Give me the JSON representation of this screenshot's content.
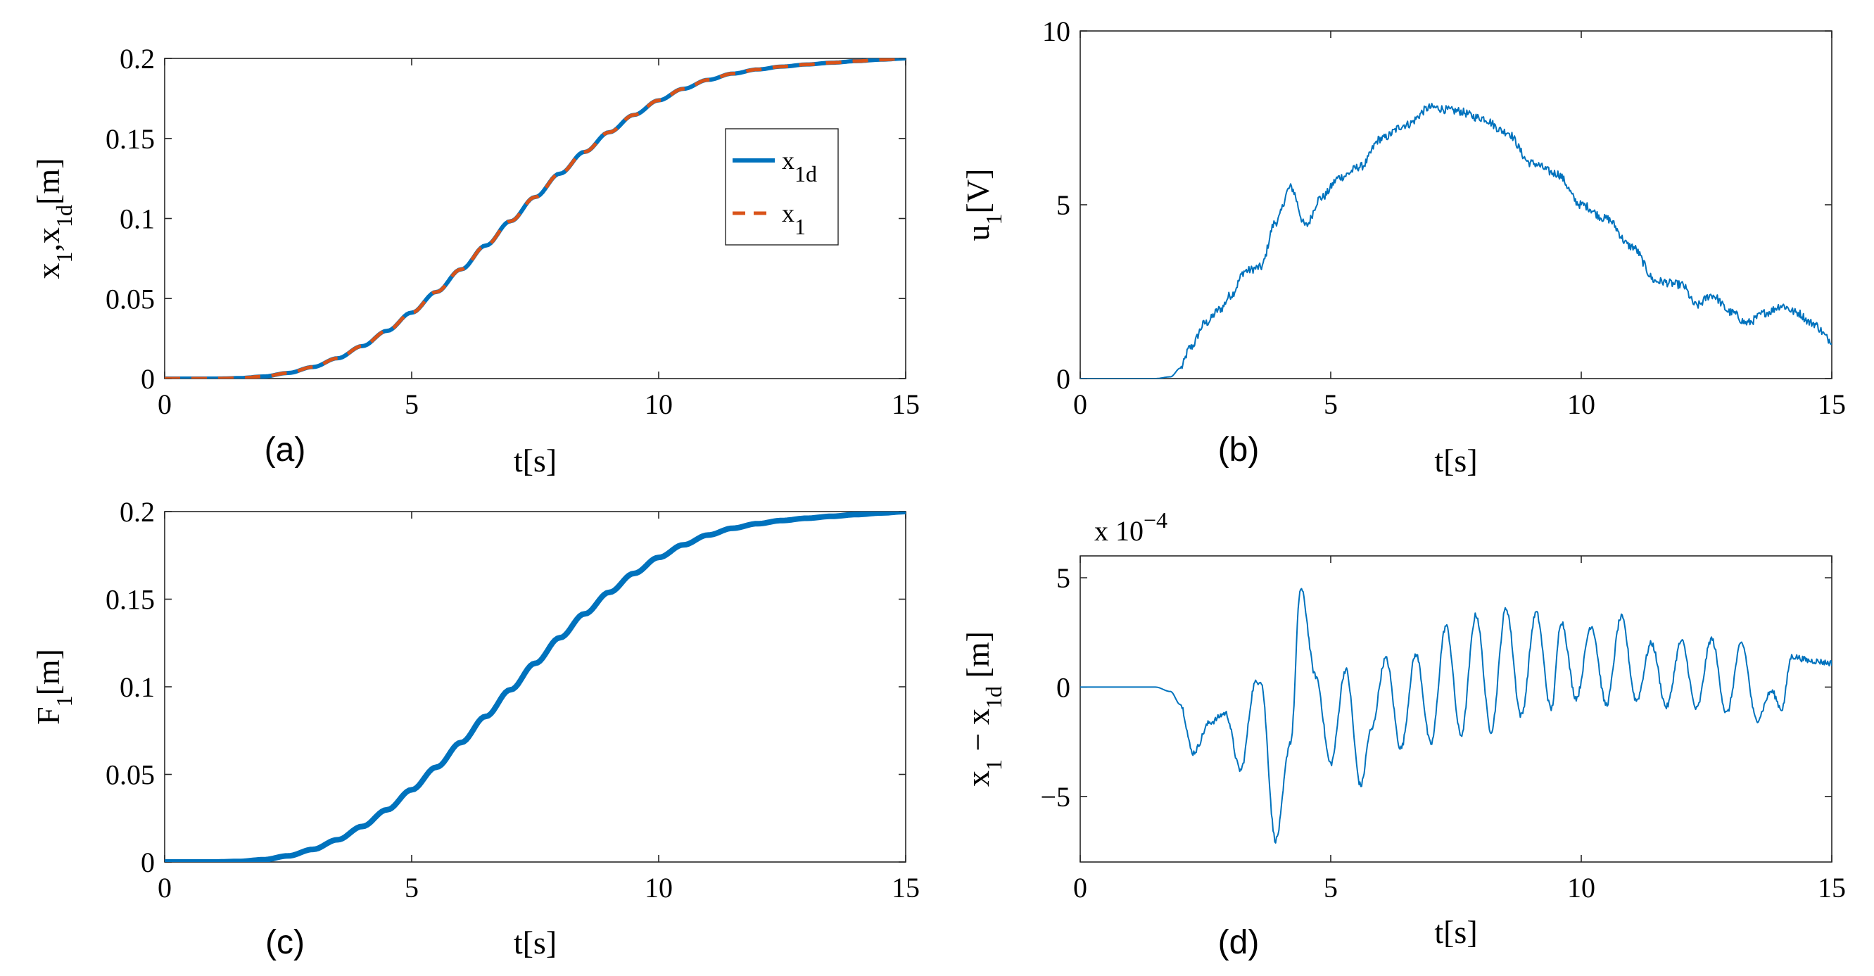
{
  "figure": {
    "panel_count": 4
  },
  "chart_data": [
    {
      "id": "a",
      "type": "line",
      "panel_label": "(a)",
      "xlabel": "t[s]",
      "ylabel": {
        "main": "x",
        "s1": "1",
        "mid": ",x",
        "s2": "1d",
        "tail": "[m]"
      },
      "xlim": [
        0,
        15
      ],
      "ylim": [
        0,
        0.2
      ],
      "xticks": [
        0,
        5,
        10,
        15
      ],
      "yticks": [
        0,
        0.05,
        0.1,
        0.15,
        0.2
      ],
      "ytick_labels": [
        "0",
        "0.05",
        "0.1",
        "0.15",
        "0.2"
      ],
      "legend": {
        "position": "right-middle",
        "entries": [
          {
            "main": "x",
            "sub": "1d",
            "series": "x1d"
          },
          {
            "main": "x",
            "sub": "1",
            "series": "x1"
          }
        ]
      },
      "series": [
        {
          "name": "x1d",
          "color": "#0072BD",
          "style": "solid",
          "x": [
            0,
            0.5,
            1,
            1.5,
            2,
            2.5,
            3,
            3.5,
            4,
            4.5,
            5,
            5.5,
            6,
            6.5,
            7,
            7.5,
            8,
            8.5,
            9,
            9.5,
            10,
            10.5,
            11,
            11.5,
            12,
            12.5,
            13,
            13.5,
            14,
            14.5,
            15
          ],
          "y": [
            0,
            0,
            0,
            0.0003,
            0.0013,
            0.0035,
            0.0072,
            0.0127,
            0.0203,
            0.0298,
            0.0412,
            0.0541,
            0.0682,
            0.0831,
            0.0983,
            0.1134,
            0.128,
            0.1416,
            0.1539,
            0.1647,
            0.1738,
            0.181,
            0.1866,
            0.1905,
            0.1931,
            0.1949,
            0.1962,
            0.1973,
            0.1983,
            0.1992,
            0.2
          ]
        },
        {
          "name": "x1",
          "color": "#D95319",
          "style": "dashed",
          "x": [
            0,
            0.5,
            1,
            1.5,
            2,
            2.5,
            3,
            3.5,
            4,
            4.5,
            5,
            5.5,
            6,
            6.5,
            7,
            7.5,
            8,
            8.5,
            9,
            9.5,
            10,
            10.5,
            11,
            11.5,
            12,
            12.5,
            13,
            13.5,
            14,
            14.5,
            15
          ],
          "y": [
            0,
            0,
            0,
            0.0003,
            0.0013,
            0.0035,
            0.0072,
            0.0127,
            0.0203,
            0.0298,
            0.0412,
            0.0541,
            0.0682,
            0.0831,
            0.0983,
            0.1134,
            0.128,
            0.1416,
            0.1539,
            0.1647,
            0.1738,
            0.181,
            0.1866,
            0.1905,
            0.1931,
            0.1949,
            0.1962,
            0.1973,
            0.1983,
            0.1992,
            0.2
          ]
        }
      ]
    },
    {
      "id": "b",
      "type": "line",
      "panel_label": "(b)",
      "xlabel": "t[s]",
      "ylabel": {
        "main": "u",
        "s1": "1",
        "tail": "[V]"
      },
      "xlim": [
        0,
        15
      ],
      "ylim": [
        0,
        10
      ],
      "xticks": [
        0,
        5,
        10,
        15
      ],
      "yticks": [
        0,
        5,
        10
      ],
      "ytick_labels": [
        "0",
        "5",
        "10"
      ],
      "series": [
        {
          "name": "u1",
          "color": "#0072BD",
          "style": "solid",
          "noisy": true,
          "x": [
            0,
            1.5,
            1.8,
            2.0,
            2.2,
            2.5,
            2.8,
            3.0,
            3.3,
            3.6,
            3.9,
            4.2,
            4.5,
            4.8,
            5.2,
            5.6,
            6.0,
            6.5,
            7.0,
            7.5,
            8.0,
            8.5,
            9.0,
            9.5,
            10.0,
            10.5,
            11.0,
            11.5,
            12.0,
            12.3,
            12.6,
            13.0,
            13.3,
            13.7,
            14.0,
            14.3,
            14.6,
            15.0
          ],
          "y": [
            0,
            0,
            0.05,
            0.3,
            0.9,
            1.6,
            2.0,
            2.4,
            3.1,
            3.2,
            4.5,
            5.5,
            4.4,
            5.2,
            5.8,
            6.1,
            6.9,
            7.3,
            7.8,
            7.7,
            7.5,
            7.1,
            6.2,
            5.9,
            5.0,
            4.6,
            3.8,
            2.8,
            2.7,
            2.1,
            2.4,
            1.9,
            1.6,
            1.9,
            2.1,
            1.9,
            1.6,
            1.1
          ]
        }
      ]
    },
    {
      "id": "c",
      "type": "line",
      "panel_label": "(c)",
      "xlabel": "t[s]",
      "ylabel": {
        "main": "F",
        "s1": "1",
        "tail": "[m]"
      },
      "xlim": [
        0,
        15
      ],
      "ylim": [
        0,
        0.2
      ],
      "xticks": [
        0,
        5,
        10,
        15
      ],
      "yticks": [
        0,
        0.05,
        0.1,
        0.15,
        0.2
      ],
      "ytick_labels": [
        "0",
        "0.05",
        "0.1",
        "0.15",
        "0.2"
      ],
      "series": [
        {
          "name": "F1",
          "color": "#0072BD",
          "style": "solid",
          "x": [
            0,
            0.5,
            1,
            1.5,
            2,
            2.5,
            3,
            3.5,
            4,
            4.5,
            5,
            5.5,
            6,
            6.5,
            7,
            7.5,
            8,
            8.5,
            9,
            9.5,
            10,
            10.5,
            11,
            11.5,
            12,
            12.5,
            13,
            13.5,
            14,
            14.5,
            15
          ],
          "y": [
            0,
            0,
            0,
            0.0003,
            0.0013,
            0.0035,
            0.0072,
            0.0127,
            0.0203,
            0.0298,
            0.0412,
            0.0541,
            0.0682,
            0.0831,
            0.0983,
            0.1134,
            0.128,
            0.1416,
            0.1539,
            0.1647,
            0.1738,
            0.181,
            0.1866,
            0.1905,
            0.1931,
            0.1949,
            0.1962,
            0.1973,
            0.1983,
            0.1992,
            0.2
          ]
        }
      ]
    },
    {
      "id": "d",
      "type": "line",
      "panel_label": "(d)",
      "xlabel": "t[s]",
      "ylabel": {
        "main": "x",
        "s1": "1",
        "mid": " − x",
        "s2": "1d",
        "tail": " [m]"
      },
      "exponent_label": {
        "base": "x 10",
        "power": "−4"
      },
      "xlim": [
        0,
        15
      ],
      "ylim": [
        -8,
        6
      ],
      "xticks": [
        0,
        5,
        10,
        15
      ],
      "yticks": [
        -5,
        0,
        5
      ],
      "ytick_labels": [
        "−5",
        "0",
        "5"
      ],
      "series": [
        {
          "name": "x1_minus_x1d_e-4",
          "color": "#0072BD",
          "style": "solid",
          "noisy": true,
          "x": [
            0,
            1.5,
            1.8,
            2.0,
            2.25,
            2.6,
            2.9,
            3.2,
            3.5,
            3.6,
            3.9,
            4.2,
            4.4,
            4.7,
            5.0,
            5.3,
            5.6,
            5.8,
            6.1,
            6.4,
            6.7,
            7.0,
            7.3,
            7.6,
            7.9,
            8.2,
            8.5,
            8.8,
            9.1,
            9.4,
            9.6,
            9.9,
            10.2,
            10.5,
            10.8,
            11.1,
            11.4,
            11.7,
            12.0,
            12.3,
            12.6,
            12.9,
            13.2,
            13.5,
            13.8,
            14.0,
            14.2,
            14.6,
            15.0
          ],
          "y": [
            0,
            0,
            -0.2,
            -0.8,
            -3.0,
            -1.6,
            -1.2,
            -3.8,
            0.2,
            0.3,
            -7.0,
            -2.5,
            4.5,
            0.5,
            -3.5,
            0.8,
            -4.5,
            -2.0,
            1.3,
            -2.8,
            1.5,
            -2.6,
            2.8,
            -2.2,
            3.3,
            -2.0,
            3.6,
            -1.3,
            3.4,
            -1.0,
            3.0,
            -0.5,
            2.8,
            -0.8,
            3.2,
            -0.6,
            2.0,
            -0.9,
            2.1,
            -1.0,
            2.2,
            -1.2,
            2.0,
            -1.5,
            -0.2,
            -1.0,
            1.4,
            1.2,
            1.1
          ]
        }
      ]
    }
  ]
}
